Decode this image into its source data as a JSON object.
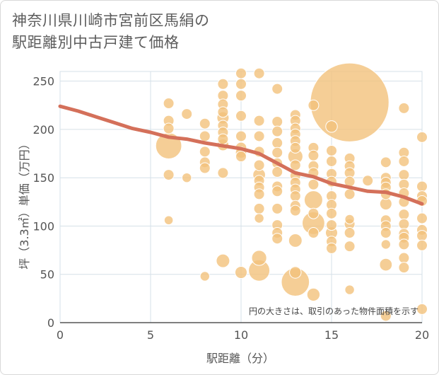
{
  "header": {
    "title_line1": "神奈川県川崎市宮前区馬絹の",
    "title_line2": "駅距離別中古戸建て価格"
  },
  "colors": {
    "bubble": "#f2c27c",
    "bubble_stroke": "#ffffff",
    "line": "#d4705a",
    "grid": "#d6e0e8",
    "axis": "#555555"
  },
  "chart_data": {
    "type": "scatter",
    "title": "神奈川県川崎市宮前区馬絹の駅距離別中古戸建て価格",
    "xlabel": "駅距離（分）",
    "ylabel": "坪（3.3㎡）単価（万円）",
    "xlim": [
      0,
      20
    ],
    "ylim": [
      0,
      260
    ],
    "xticks": [
      0,
      5,
      10,
      15,
      20
    ],
    "yticks": [
      0,
      50,
      100,
      150,
      200,
      250
    ],
    "annotation": "円の大きさは、取引のあった物件面積を示す",
    "points": [
      {
        "x": 6,
        "y": 227,
        "s": 1
      },
      {
        "x": 6,
        "y": 209,
        "s": 1
      },
      {
        "x": 6,
        "y": 201,
        "s": 1
      },
      {
        "x": 6,
        "y": 183,
        "s": 6
      },
      {
        "x": 6,
        "y": 153,
        "s": 1
      },
      {
        "x": 6,
        "y": 106,
        "s": 0.7
      },
      {
        "x": 7,
        "y": 216,
        "s": 1
      },
      {
        "x": 7,
        "y": 150,
        "s": 0.8
      },
      {
        "x": 8,
        "y": 206,
        "s": 1
      },
      {
        "x": 8,
        "y": 193,
        "s": 1
      },
      {
        "x": 8,
        "y": 177,
        "s": 1
      },
      {
        "x": 8,
        "y": 166,
        "s": 1
      },
      {
        "x": 8,
        "y": 160,
        "s": 1
      },
      {
        "x": 8,
        "y": 48,
        "s": 0.8
      },
      {
        "x": 9,
        "y": 247,
        "s": 1
      },
      {
        "x": 9,
        "y": 235,
        "s": 1
      },
      {
        "x": 9,
        "y": 226,
        "s": 1
      },
      {
        "x": 9,
        "y": 218,
        "s": 1
      },
      {
        "x": 9,
        "y": 212,
        "s": 1.3
      },
      {
        "x": 9,
        "y": 204,
        "s": 1
      },
      {
        "x": 9,
        "y": 197,
        "s": 1
      },
      {
        "x": 9,
        "y": 190,
        "s": 1
      },
      {
        "x": 9,
        "y": 184,
        "s": 1.2
      },
      {
        "x": 9,
        "y": 155,
        "s": 1
      },
      {
        "x": 9,
        "y": 64,
        "s": 1.6
      },
      {
        "x": 10,
        "y": 258,
        "s": 1
      },
      {
        "x": 10,
        "y": 247,
        "s": 1
      },
      {
        "x": 10,
        "y": 235,
        "s": 1
      },
      {
        "x": 10,
        "y": 214,
        "s": 1
      },
      {
        "x": 10,
        "y": 193,
        "s": 1
      },
      {
        "x": 10,
        "y": 181,
        "s": 1.1
      },
      {
        "x": 10,
        "y": 176,
        "s": 1.1
      },
      {
        "x": 10,
        "y": 172,
        "s": 1
      },
      {
        "x": 10,
        "y": 52,
        "s": 1.3
      },
      {
        "x": 11,
        "y": 258,
        "s": 1
      },
      {
        "x": 11,
        "y": 209,
        "s": 1
      },
      {
        "x": 11,
        "y": 193,
        "s": 1
      },
      {
        "x": 11,
        "y": 177,
        "s": 1
      },
      {
        "x": 11,
        "y": 163,
        "s": 1
      },
      {
        "x": 11,
        "y": 153,
        "s": 1.4
      },
      {
        "x": 11,
        "y": 147,
        "s": 1
      },
      {
        "x": 11,
        "y": 140,
        "s": 1
      },
      {
        "x": 11,
        "y": 133,
        "s": 1
      },
      {
        "x": 11,
        "y": 118,
        "s": 1
      },
      {
        "x": 11,
        "y": 108,
        "s": 0.8
      },
      {
        "x": 11,
        "y": 67,
        "s": 2
      },
      {
        "x": 11,
        "y": 54,
        "s": 4
      },
      {
        "x": 12,
        "y": 242,
        "s": 1
      },
      {
        "x": 12,
        "y": 208,
        "s": 1
      },
      {
        "x": 12,
        "y": 198,
        "s": 1
      },
      {
        "x": 12,
        "y": 186,
        "s": 1
      },
      {
        "x": 12,
        "y": 176,
        "s": 1
      },
      {
        "x": 12,
        "y": 165,
        "s": 1
      },
      {
        "x": 12,
        "y": 156,
        "s": 1
      },
      {
        "x": 12,
        "y": 141,
        "s": 1
      },
      {
        "x": 12,
        "y": 136,
        "s": 1
      },
      {
        "x": 12,
        "y": 118,
        "s": 1
      },
      {
        "x": 12,
        "y": 101,
        "s": 1
      },
      {
        "x": 12,
        "y": 93,
        "s": 1
      },
      {
        "x": 12,
        "y": 87,
        "s": 1
      },
      {
        "x": 13,
        "y": 215,
        "s": 1
      },
      {
        "x": 13,
        "y": 209,
        "s": 1
      },
      {
        "x": 13,
        "y": 201,
        "s": 1
      },
      {
        "x": 13,
        "y": 195,
        "s": 1
      },
      {
        "x": 13,
        "y": 188,
        "s": 1
      },
      {
        "x": 13,
        "y": 181,
        "s": 1
      },
      {
        "x": 13,
        "y": 172,
        "s": 2
      },
      {
        "x": 13,
        "y": 163,
        "s": 1
      },
      {
        "x": 13,
        "y": 152,
        "s": 1
      },
      {
        "x": 13,
        "y": 145,
        "s": 1
      },
      {
        "x": 13,
        "y": 138,
        "s": 1
      },
      {
        "x": 13,
        "y": 131,
        "s": 1
      },
      {
        "x": 13,
        "y": 121,
        "s": 1
      },
      {
        "x": 13,
        "y": 116,
        "s": 1
      },
      {
        "x": 13,
        "y": 85,
        "s": 1.6
      },
      {
        "x": 13,
        "y": 52,
        "s": 1.2
      },
      {
        "x": 13,
        "y": 42,
        "s": 7
      },
      {
        "x": 14,
        "y": 225,
        "s": 1
      },
      {
        "x": 14,
        "y": 181,
        "s": 1
      },
      {
        "x": 14,
        "y": 173,
        "s": 1
      },
      {
        "x": 14,
        "y": 162,
        "s": 1
      },
      {
        "x": 14,
        "y": 155,
        "s": 1
      },
      {
        "x": 14,
        "y": 143,
        "s": 1
      },
      {
        "x": 14,
        "y": 127,
        "s": 3
      },
      {
        "x": 14,
        "y": 113,
        "s": 1
      },
      {
        "x": 14,
        "y": 103,
        "s": 4.5
      },
      {
        "x": 14,
        "y": 93,
        "s": 1
      },
      {
        "x": 14,
        "y": 29,
        "s": 1.5
      },
      {
        "x": 15,
        "y": 203,
        "s": 1.2
      },
      {
        "x": 15,
        "y": 178,
        "s": 1
      },
      {
        "x": 15,
        "y": 167,
        "s": 1
      },
      {
        "x": 15,
        "y": 154,
        "s": 1
      },
      {
        "x": 15,
        "y": 146,
        "s": 1
      },
      {
        "x": 15,
        "y": 131,
        "s": 1
      },
      {
        "x": 15,
        "y": 122,
        "s": 1
      },
      {
        "x": 15,
        "y": 113,
        "s": 1
      },
      {
        "x": 15,
        "y": 101,
        "s": 1
      },
      {
        "x": 15,
        "y": 93,
        "s": 1.3
      },
      {
        "x": 15,
        "y": 84,
        "s": 1
      },
      {
        "x": 15,
        "y": 77,
        "s": 1
      },
      {
        "x": 16,
        "y": 228,
        "s": 55
      },
      {
        "x": 16,
        "y": 170,
        "s": 1
      },
      {
        "x": 16,
        "y": 162,
        "s": 1
      },
      {
        "x": 16,
        "y": 155,
        "s": 1
      },
      {
        "x": 16,
        "y": 146,
        "s": 1
      },
      {
        "x": 16,
        "y": 133,
        "s": 1
      },
      {
        "x": 16,
        "y": 107,
        "s": 0.8
      },
      {
        "x": 16,
        "y": 102,
        "s": 1
      },
      {
        "x": 16,
        "y": 93,
        "s": 1
      },
      {
        "x": 16,
        "y": 79,
        "s": 1
      },
      {
        "x": 16,
        "y": 34,
        "s": 0.8
      },
      {
        "x": 17,
        "y": 147,
        "s": 1
      },
      {
        "x": 18,
        "y": 166,
        "s": 1
      },
      {
        "x": 18,
        "y": 150,
        "s": 1
      },
      {
        "x": 18,
        "y": 145,
        "s": 1
      },
      {
        "x": 18,
        "y": 140,
        "s": 1
      },
      {
        "x": 18,
        "y": 133,
        "s": 1
      },
      {
        "x": 18,
        "y": 123,
        "s": 1.3
      },
      {
        "x": 18,
        "y": 106,
        "s": 1
      },
      {
        "x": 18,
        "y": 100,
        "s": 1
      },
      {
        "x": 18,
        "y": 93,
        "s": 1
      },
      {
        "x": 18,
        "y": 81,
        "s": 0.8
      },
      {
        "x": 18,
        "y": 60,
        "s": 1.4
      },
      {
        "x": 18,
        "y": 7,
        "s": 1
      },
      {
        "x": 19,
        "y": 222,
        "s": 1
      },
      {
        "x": 19,
        "y": 176,
        "s": 1
      },
      {
        "x": 19,
        "y": 167,
        "s": 1
      },
      {
        "x": 19,
        "y": 153,
        "s": 1
      },
      {
        "x": 19,
        "y": 143,
        "s": 1
      },
      {
        "x": 19,
        "y": 134,
        "s": 1
      },
      {
        "x": 19,
        "y": 125,
        "s": 1
      },
      {
        "x": 19,
        "y": 112,
        "s": 1
      },
      {
        "x": 19,
        "y": 102,
        "s": 1
      },
      {
        "x": 19,
        "y": 92,
        "s": 1
      },
      {
        "x": 19,
        "y": 88,
        "s": 1
      },
      {
        "x": 19,
        "y": 81,
        "s": 1
      },
      {
        "x": 19,
        "y": 67,
        "s": 1
      },
      {
        "x": 19,
        "y": 57,
        "s": 1
      },
      {
        "x": 20,
        "y": 192,
        "s": 1
      },
      {
        "x": 20,
        "y": 141,
        "s": 1
      },
      {
        "x": 20,
        "y": 131,
        "s": 1
      },
      {
        "x": 20,
        "y": 126,
        "s": 1
      },
      {
        "x": 20,
        "y": 108,
        "s": 1
      },
      {
        "x": 20,
        "y": 96,
        "s": 1
      },
      {
        "x": 20,
        "y": 90,
        "s": 1
      },
      {
        "x": 20,
        "y": 80,
        "s": 1
      },
      {
        "x": 20,
        "y": 14,
        "s": 1
      }
    ],
    "trend": [
      {
        "x": 0,
        "y": 224
      },
      {
        "x": 1,
        "y": 219
      },
      {
        "x": 2,
        "y": 213
      },
      {
        "x": 3,
        "y": 207
      },
      {
        "x": 4,
        "y": 201
      },
      {
        "x": 5,
        "y": 197
      },
      {
        "x": 6,
        "y": 192
      },
      {
        "x": 7,
        "y": 190
      },
      {
        "x": 8,
        "y": 186
      },
      {
        "x": 9,
        "y": 183
      },
      {
        "x": 10,
        "y": 180
      },
      {
        "x": 11,
        "y": 175
      },
      {
        "x": 12,
        "y": 165
      },
      {
        "x": 13,
        "y": 155
      },
      {
        "x": 14,
        "y": 151
      },
      {
        "x": 15,
        "y": 144
      },
      {
        "x": 16,
        "y": 140
      },
      {
        "x": 17,
        "y": 136
      },
      {
        "x": 18,
        "y": 135
      },
      {
        "x": 19,
        "y": 130
      },
      {
        "x": 20,
        "y": 123
      }
    ]
  }
}
